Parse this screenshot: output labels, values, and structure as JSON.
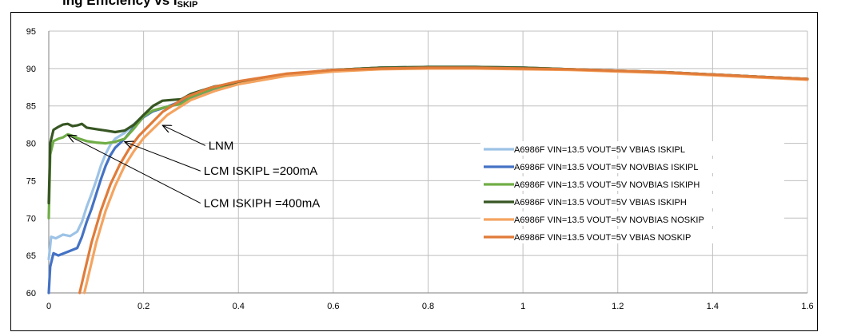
{
  "header_fragment": {
    "text": "ing Efficiency vs I",
    "sub": "SKIP"
  },
  "chart_data": {
    "type": "line",
    "title": "",
    "xlabel": "",
    "ylabel": "",
    "xlim": [
      0,
      1.6
    ],
    "ylim": [
      60,
      95
    ],
    "x_ticks": [
      "0",
      "0.2",
      "0.4",
      "0.6",
      "0.8",
      "1",
      "1.2",
      "1.4",
      "1.6"
    ],
    "y_ticks": [
      "60",
      "65",
      "70",
      "75",
      "80",
      "85",
      "90",
      "95"
    ],
    "grid": true,
    "legend_position": "bottom-right",
    "series": [
      {
        "name": "A6986F VIN=13.5 VOUT=5V VBIAS ISKIPL",
        "color": "#9dc3e6",
        "points": [
          [
            0,
            64.5
          ],
          [
            0.005,
            67.5
          ],
          [
            0.015,
            67.3
          ],
          [
            0.03,
            67.8
          ],
          [
            0.045,
            67.6
          ],
          [
            0.06,
            68.2
          ],
          [
            0.07,
            69.5
          ],
          [
            0.08,
            71.5
          ],
          [
            0.09,
            73.2
          ],
          [
            0.1,
            75.0
          ],
          [
            0.11,
            77.0
          ],
          [
            0.12,
            78.6
          ],
          [
            0.13,
            79.8
          ],
          [
            0.14,
            80.6
          ],
          [
            0.16,
            81.4
          ],
          [
            0.18,
            82.6
          ],
          [
            0.2,
            83.7
          ],
          [
            0.22,
            84.3
          ],
          [
            0.25,
            84.9
          ],
          [
            0.3,
            86.2
          ],
          [
            0.35,
            87.3
          ],
          [
            0.4,
            88.0
          ],
          [
            0.5,
            89.2
          ],
          [
            0.6,
            89.8
          ],
          [
            0.7,
            90.1
          ],
          [
            0.8,
            90.2
          ],
          [
            0.9,
            90.2
          ],
          [
            1.0,
            90.1
          ],
          [
            1.1,
            89.9
          ],
          [
            1.2,
            89.7
          ],
          [
            1.3,
            89.5
          ],
          [
            1.4,
            89.2
          ],
          [
            1.5,
            88.9
          ],
          [
            1.6,
            88.6
          ]
        ]
      },
      {
        "name": "A6986F VIN=13.5 VOUT=5V NOVBIAS ISKIPL",
        "color": "#4472c4",
        "points": [
          [
            0,
            60.0
          ],
          [
            0.003,
            63.5
          ],
          [
            0.01,
            65.3
          ],
          [
            0.02,
            65.0
          ],
          [
            0.04,
            65.5
          ],
          [
            0.06,
            66.0
          ],
          [
            0.07,
            67.5
          ],
          [
            0.08,
            69.5
          ],
          [
            0.09,
            71.2
          ],
          [
            0.1,
            73.2
          ],
          [
            0.11,
            75.2
          ],
          [
            0.12,
            77.0
          ],
          [
            0.13,
            78.4
          ],
          [
            0.14,
            79.4
          ],
          [
            0.16,
            80.6
          ],
          [
            0.18,
            82.2
          ],
          [
            0.2,
            83.5
          ],
          [
            0.22,
            84.3
          ],
          [
            0.25,
            84.9
          ],
          [
            0.3,
            86.1
          ],
          [
            0.35,
            87.2
          ],
          [
            0.4,
            88.0
          ],
          [
            0.5,
            89.2
          ],
          [
            0.6,
            89.8
          ],
          [
            0.7,
            90.1
          ],
          [
            0.8,
            90.2
          ],
          [
            0.9,
            90.2
          ],
          [
            1.0,
            90.1
          ],
          [
            1.1,
            89.9
          ],
          [
            1.2,
            89.7
          ],
          [
            1.3,
            89.5
          ],
          [
            1.4,
            89.2
          ],
          [
            1.5,
            88.9
          ],
          [
            1.6,
            88.6
          ]
        ]
      },
      {
        "name": "A6986F VIN=13.5 VOUT=5V NOVBIAS ISKIPH",
        "color": "#70ad47",
        "points": [
          [
            0,
            70.0
          ],
          [
            0.003,
            78.5
          ],
          [
            0.01,
            80.3
          ],
          [
            0.02,
            80.6
          ],
          [
            0.03,
            80.8
          ],
          [
            0.04,
            81.2
          ],
          [
            0.05,
            81.0
          ],
          [
            0.06,
            80.7
          ],
          [
            0.08,
            80.3
          ],
          [
            0.1,
            80.1
          ],
          [
            0.12,
            80.0
          ],
          [
            0.14,
            80.2
          ],
          [
            0.16,
            80.6
          ],
          [
            0.18,
            82.0
          ],
          [
            0.2,
            83.6
          ],
          [
            0.22,
            84.4
          ],
          [
            0.25,
            84.9
          ],
          [
            0.28,
            85.3
          ],
          [
            0.3,
            86.2
          ],
          [
            0.35,
            87.4
          ],
          [
            0.4,
            88.1
          ],
          [
            0.5,
            89.2
          ],
          [
            0.6,
            89.8
          ],
          [
            0.7,
            90.1
          ],
          [
            0.8,
            90.2
          ],
          [
            0.9,
            90.2
          ],
          [
            1.0,
            90.1
          ],
          [
            1.1,
            89.9
          ],
          [
            1.2,
            89.7
          ],
          [
            1.3,
            89.5
          ],
          [
            1.4,
            89.2
          ],
          [
            1.5,
            88.9
          ],
          [
            1.6,
            88.6
          ]
        ]
      },
      {
        "name": "A6986F VIN=13.5 VOUT=5V VBIAS ISKIPH",
        "color": "#375623",
        "points": [
          [
            0,
            72.0
          ],
          [
            0.003,
            80.0
          ],
          [
            0.01,
            81.8
          ],
          [
            0.02,
            82.2
          ],
          [
            0.03,
            82.5
          ],
          [
            0.04,
            82.6
          ],
          [
            0.05,
            82.3
          ],
          [
            0.06,
            82.4
          ],
          [
            0.07,
            82.6
          ],
          [
            0.08,
            82.1
          ],
          [
            0.1,
            81.9
          ],
          [
            0.12,
            81.7
          ],
          [
            0.14,
            81.5
          ],
          [
            0.16,
            81.7
          ],
          [
            0.18,
            82.5
          ],
          [
            0.2,
            83.8
          ],
          [
            0.22,
            85.0
          ],
          [
            0.24,
            85.7
          ],
          [
            0.26,
            85.8
          ],
          [
            0.28,
            85.9
          ],
          [
            0.3,
            86.6
          ],
          [
            0.35,
            87.6
          ],
          [
            0.4,
            88.1
          ],
          [
            0.5,
            89.2
          ],
          [
            0.6,
            89.8
          ],
          [
            0.7,
            90.1
          ],
          [
            0.8,
            90.2
          ],
          [
            0.9,
            90.2
          ],
          [
            1.0,
            90.1
          ],
          [
            1.1,
            89.9
          ],
          [
            1.2,
            89.7
          ],
          [
            1.3,
            89.5
          ],
          [
            1.4,
            89.2
          ],
          [
            1.5,
            88.9
          ],
          [
            1.6,
            88.6
          ]
        ]
      },
      {
        "name": "A6986F VIN=13.5 VOUT=5V NOVBIAS NOSKIP",
        "color": "#f4a460",
        "points": [
          [
            0.075,
            60.0
          ],
          [
            0.09,
            64.0
          ],
          [
            0.1,
            66.7
          ],
          [
            0.12,
            71.0
          ],
          [
            0.14,
            74.3
          ],
          [
            0.16,
            77.0
          ],
          [
            0.18,
            79.0
          ],
          [
            0.2,
            80.7
          ],
          [
            0.25,
            83.8
          ],
          [
            0.3,
            85.8
          ],
          [
            0.35,
            87.0
          ],
          [
            0.4,
            87.9
          ],
          [
            0.5,
            89.0
          ],
          [
            0.6,
            89.6
          ],
          [
            0.7,
            89.9
          ],
          [
            0.8,
            90.0
          ],
          [
            0.9,
            90.0
          ],
          [
            1.0,
            89.9
          ],
          [
            1.1,
            89.8
          ],
          [
            1.2,
            89.6
          ],
          [
            1.3,
            89.4
          ],
          [
            1.4,
            89.1
          ],
          [
            1.5,
            88.8
          ],
          [
            1.6,
            88.5
          ]
        ]
      },
      {
        "name": "A6986F VIN=13.5 VOUT=5V VBIAS NOSKIP",
        "color": "#e07b39",
        "points": [
          [
            0.065,
            60.0
          ],
          [
            0.08,
            64.0
          ],
          [
            0.09,
            66.7
          ],
          [
            0.11,
            71.0
          ],
          [
            0.13,
            74.5
          ],
          [
            0.15,
            77.2
          ],
          [
            0.17,
            79.3
          ],
          [
            0.19,
            81.0
          ],
          [
            0.24,
            84.2
          ],
          [
            0.29,
            86.2
          ],
          [
            0.34,
            87.4
          ],
          [
            0.4,
            88.3
          ],
          [
            0.5,
            89.3
          ],
          [
            0.6,
            89.8
          ],
          [
            0.7,
            90.0
          ],
          [
            0.8,
            90.1
          ],
          [
            0.9,
            90.1
          ],
          [
            1.0,
            90.0
          ],
          [
            1.1,
            89.9
          ],
          [
            1.2,
            89.7
          ],
          [
            1.3,
            89.5
          ],
          [
            1.4,
            89.2
          ],
          [
            1.5,
            88.9
          ],
          [
            1.6,
            88.6
          ]
        ]
      }
    ],
    "annotations": [
      {
        "text": "LNM",
        "tip": [
          0.24,
          82.4
        ],
        "tail": [
          0.33,
          79.7
        ]
      },
      {
        "text": "LCM ISKIPL =200mA",
        "tip": [
          0.16,
          80.2
        ],
        "tail": [
          0.32,
          76.3
        ]
      },
      {
        "text": "LCM ISKIPH =400mA",
        "tip": [
          0.04,
          81.1
        ],
        "tail": [
          0.32,
          72.0
        ]
      }
    ]
  }
}
